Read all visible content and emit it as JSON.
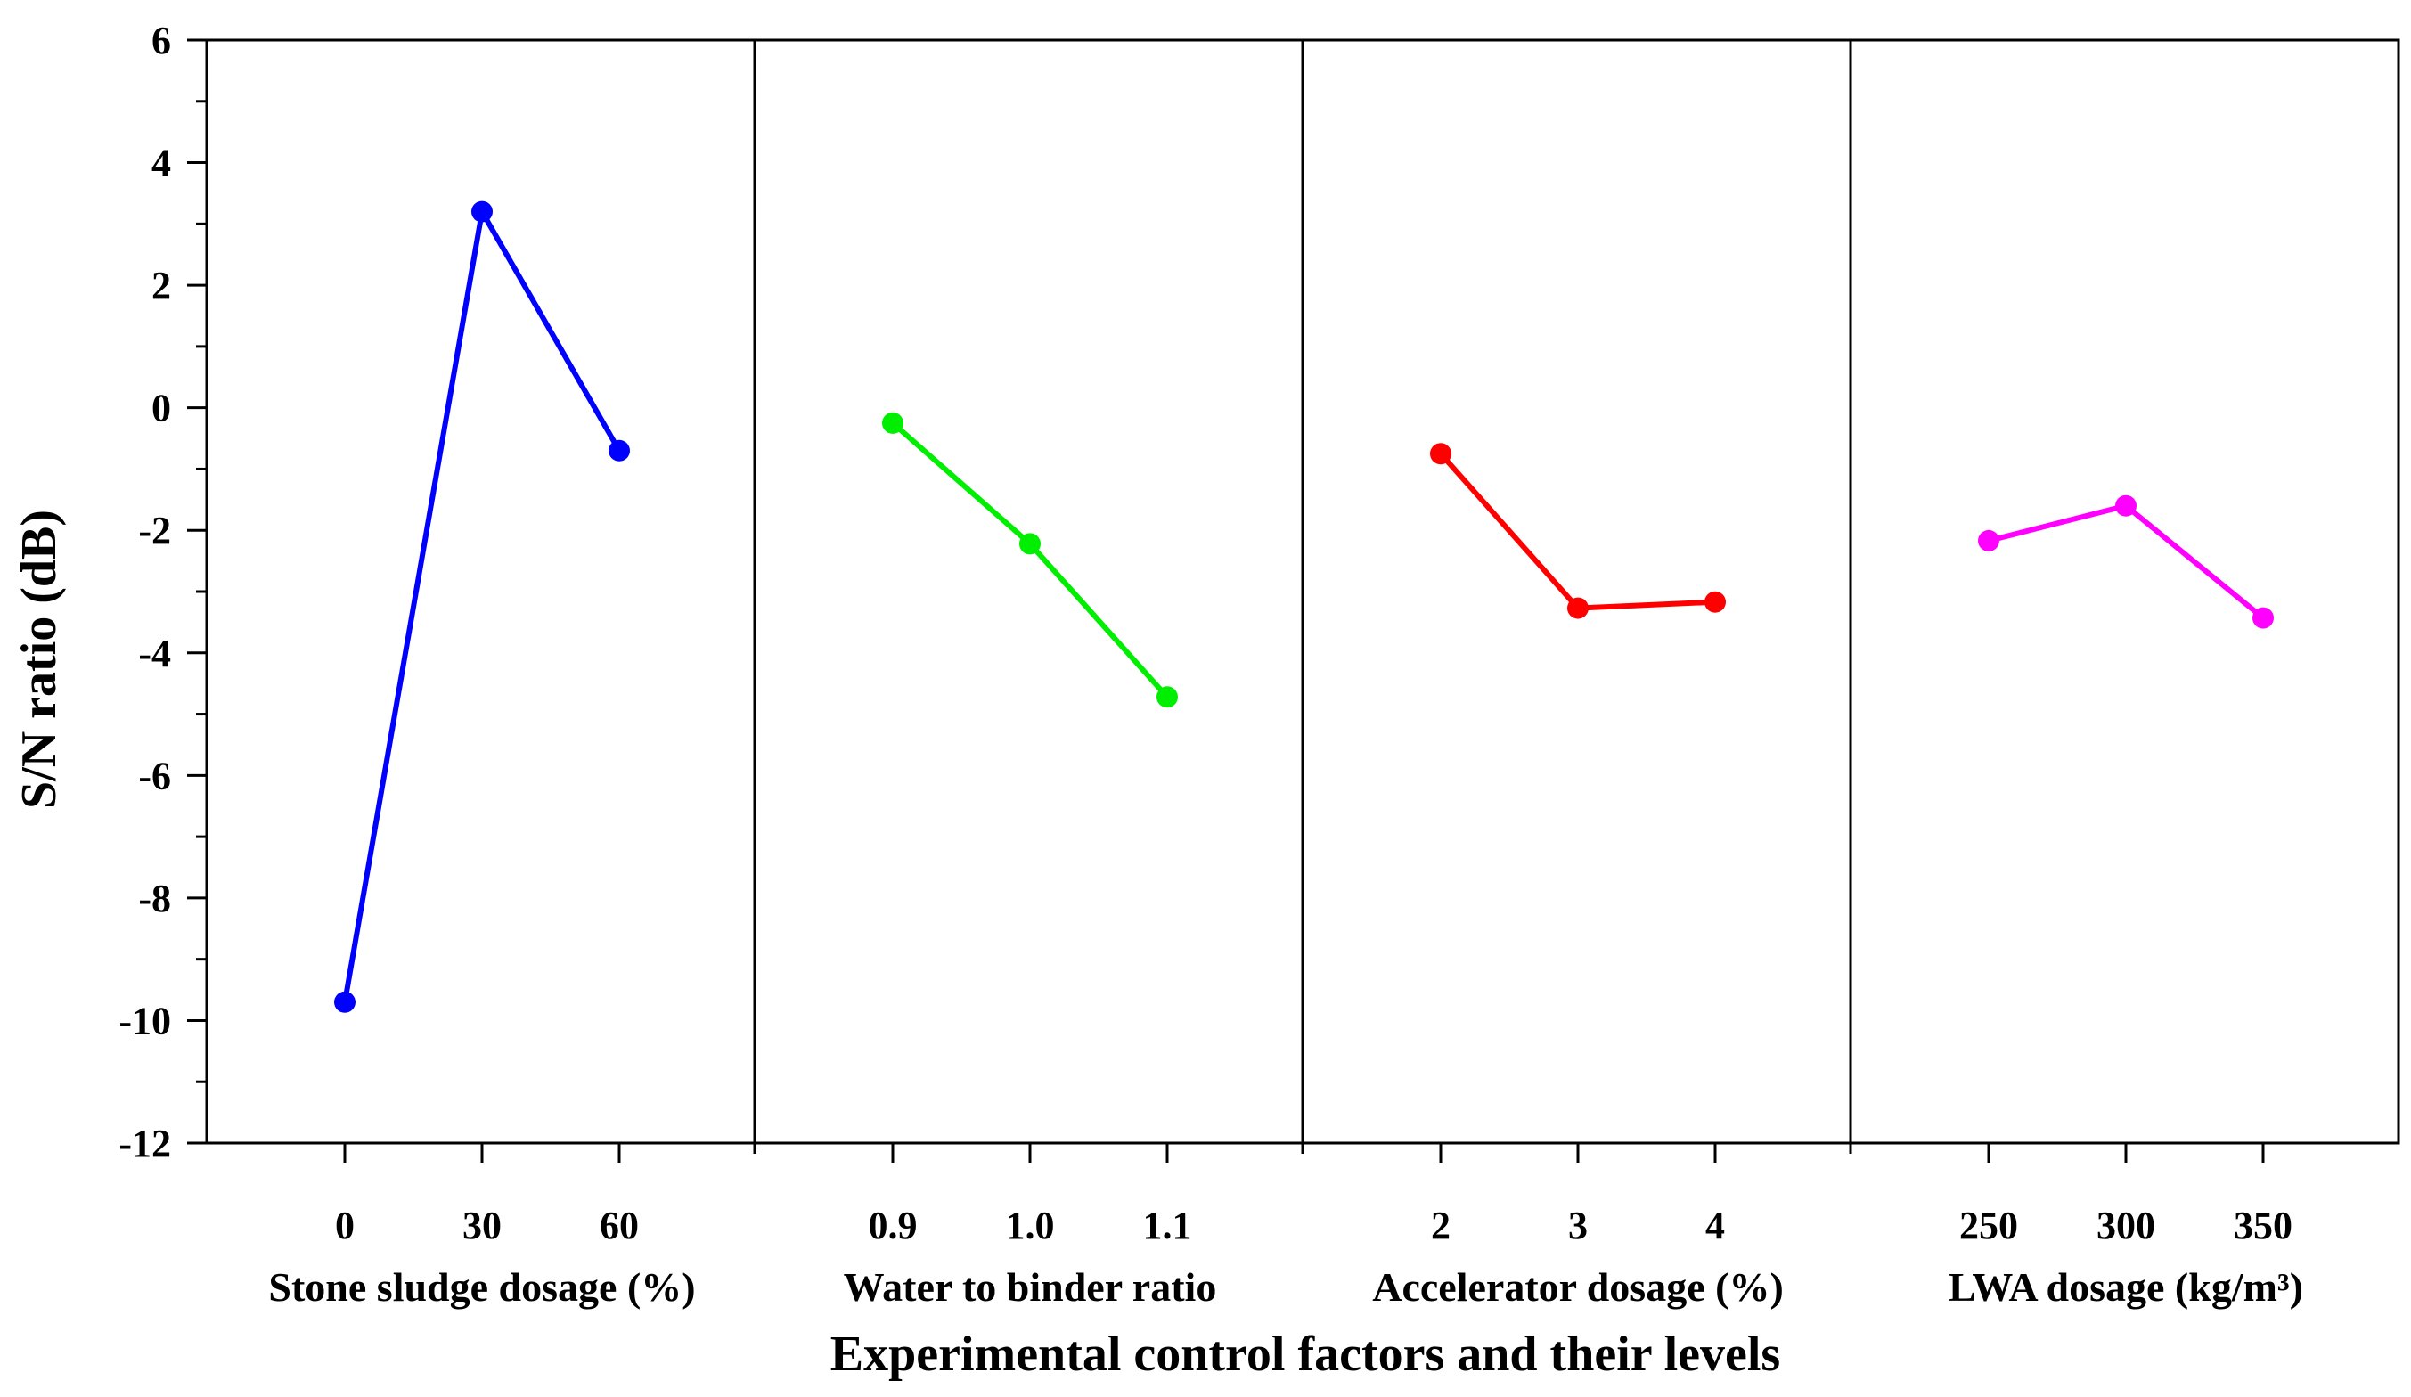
{
  "chart_data": {
    "type": "line",
    "title": "",
    "ylabel": "S/N ratio (dB)",
    "xlabel": "Experimental control factors and their levels",
    "ylim": [
      -12,
      6
    ],
    "yticks": [
      "6",
      "4",
      "2",
      "0",
      "-2",
      "-4",
      "-6",
      "-8",
      "-10",
      "-12"
    ],
    "y_minor_step": 1,
    "grid": false,
    "legend": "none",
    "panels": [
      {
        "factor": "Stone sludge dosage (%)",
        "levels": [
          "0",
          "30",
          "60"
        ],
        "values": [
          -9.7,
          3.2,
          -0.7
        ],
        "color": "#0000FF"
      },
      {
        "factor": "Water to binder ratio",
        "levels": [
          "0.9",
          "1.0",
          "1.1"
        ],
        "values": [
          -0.25,
          -2.22,
          -4.72
        ],
        "color": "#00EE00"
      },
      {
        "factor": "Accelerator dosage (%)",
        "levels": [
          "2",
          "3",
          "4"
        ],
        "values": [
          -0.75,
          -3.27,
          -3.17
        ],
        "color": "#FF0000"
      },
      {
        "factor": "LWA dosage (kg/m³)",
        "levels": [
          "250",
          "300",
          "350"
        ],
        "values": [
          -2.17,
          -1.6,
          -3.43
        ],
        "color": "#FF00FF"
      }
    ]
  }
}
